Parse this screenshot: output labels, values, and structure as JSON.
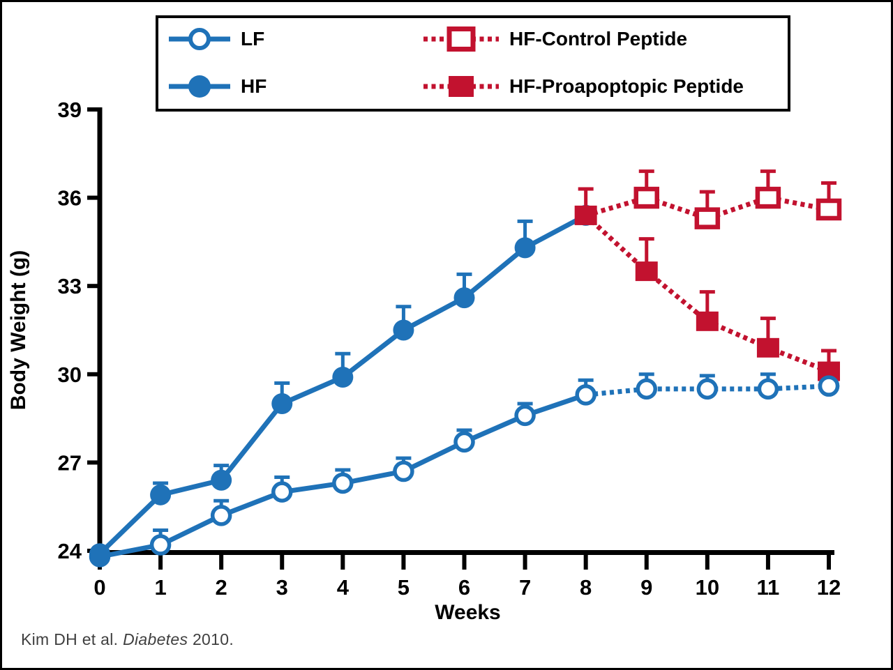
{
  "colors": {
    "blue": "#1F72B8",
    "red": "#C2122F",
    "axis": "#000000",
    "marker_fill_open": "#FFFFFF",
    "citation_text": "#3F3F3F"
  },
  "legend": {
    "items": [
      {
        "label": "LF",
        "series_index": 0
      },
      {
        "label": "HF",
        "series_index": 1
      },
      {
        "label": "HF-Control Peptide",
        "series_index": 2
      },
      {
        "label": "HF-Proapoptopic Peptide",
        "series_index": 3
      }
    ]
  },
  "citation": {
    "prefix": "Kim DH et al. ",
    "journal": "Diabetes",
    "suffix": " 2010."
  },
  "chart_data": {
    "type": "line",
    "title": "",
    "xlabel": "Weeks",
    "ylabel": "Body Weight (g)",
    "xlim": [
      0,
      12
    ],
    "ylim": [
      24,
      39
    ],
    "x_ticks": [
      0,
      1,
      2,
      3,
      4,
      5,
      6,
      7,
      8,
      9,
      10,
      11,
      12
    ],
    "y_ticks": [
      24,
      27,
      30,
      33,
      36,
      39
    ],
    "grid": false,
    "legend_position": "top",
    "error_bars": "upper-only",
    "series": [
      {
        "name": "LF",
        "color": "blue",
        "line": "solid-then-dotted",
        "solid_until_x": 8,
        "marker": "circle-open",
        "x": [
          0,
          1,
          2,
          3,
          4,
          5,
          6,
          7,
          8,
          9,
          10,
          11,
          12
        ],
        "values": [
          23.8,
          24.2,
          25.2,
          26.0,
          26.3,
          26.7,
          27.7,
          28.6,
          29.3,
          29.5,
          29.5,
          29.5,
          29.6
        ],
        "errors": [
          0,
          0.5,
          0.5,
          0.5,
          0.45,
          0.45,
          0.4,
          0.4,
          0.5,
          0.5,
          0.45,
          0.5,
          0.5
        ],
        "redraw_last_marker_on_top": true
      },
      {
        "name": "HF",
        "color": "blue",
        "line": "solid",
        "marker": "circle-filled",
        "x": [
          0,
          1,
          2,
          3,
          4,
          5,
          6,
          7,
          8
        ],
        "values": [
          23.9,
          25.9,
          26.4,
          29.0,
          29.9,
          31.5,
          32.6,
          34.3,
          35.4
        ],
        "errors": [
          0,
          0.4,
          0.5,
          0.7,
          0.8,
          0.8,
          0.8,
          0.9,
          0
        ]
      },
      {
        "name": "HF-Control Peptide",
        "color": "red",
        "line": "dotted",
        "marker": "square-open",
        "draw_marker_from_index": 1,
        "x": [
          8,
          9,
          10,
          11,
          12
        ],
        "values": [
          35.4,
          36.0,
          35.3,
          36.0,
          35.6
        ],
        "errors": [
          0,
          0.9,
          0.9,
          0.9,
          0.9
        ]
      },
      {
        "name": "HF-Proapoptopic Peptide",
        "color": "red",
        "line": "dotted",
        "marker": "square-filled",
        "x": [
          8,
          9,
          10,
          11,
          12
        ],
        "values": [
          35.4,
          33.5,
          31.8,
          30.9,
          30.1
        ],
        "errors": [
          0.9,
          1.1,
          1.0,
          1.0,
          0.7
        ]
      }
    ]
  }
}
